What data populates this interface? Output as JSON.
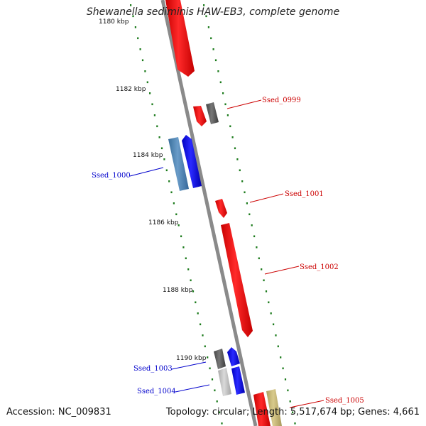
{
  "title": "Shewanella sediminis HAW-EB3, complete genome",
  "footer": {
    "accession": "Accession: NC_009831",
    "topology": "Topology: circular; Length: 5,517,674 bp; Genes: 4,661"
  },
  "scale": {
    "ticks": [
      {
        "kbp": 1180,
        "label": "1180 kbp"
      },
      {
        "kbp": 1182,
        "label": "1182 kbp"
      },
      {
        "kbp": 1184,
        "label": "1184 kbp"
      },
      {
        "kbp": 1186,
        "label": "1186 kbp"
      },
      {
        "kbp": 1188,
        "label": "1188 kbp"
      },
      {
        "kbp": 1190,
        "label": "1190 kbp"
      }
    ]
  },
  "labels": [
    {
      "name": "Ssed_0999",
      "color": "#cc0000"
    },
    {
      "name": "Ssed_1000",
      "color": "#0000cc"
    },
    {
      "name": "Ssed_1001",
      "color": "#cc0000"
    },
    {
      "name": "Ssed_1002",
      "color": "#cc0000"
    },
    {
      "name": "Ssed_1003",
      "color": "#0000cc"
    },
    {
      "name": "Ssed_1004",
      "color": "#0000cc"
    },
    {
      "name": "Ssed_1005",
      "color": "#cc0000"
    }
  ],
  "colors": {
    "forward_cds": "#ff0000",
    "reverse_cds": "#0000ff",
    "steelblue_cds": "#4a7fb0",
    "dark_gray_feature": "#555555",
    "light_gray_feature": "#bbbbbb",
    "khaki_feature": "#c8b878",
    "backbone": "#8a8a8a",
    "gc_dots": "#1a7a1a"
  }
}
